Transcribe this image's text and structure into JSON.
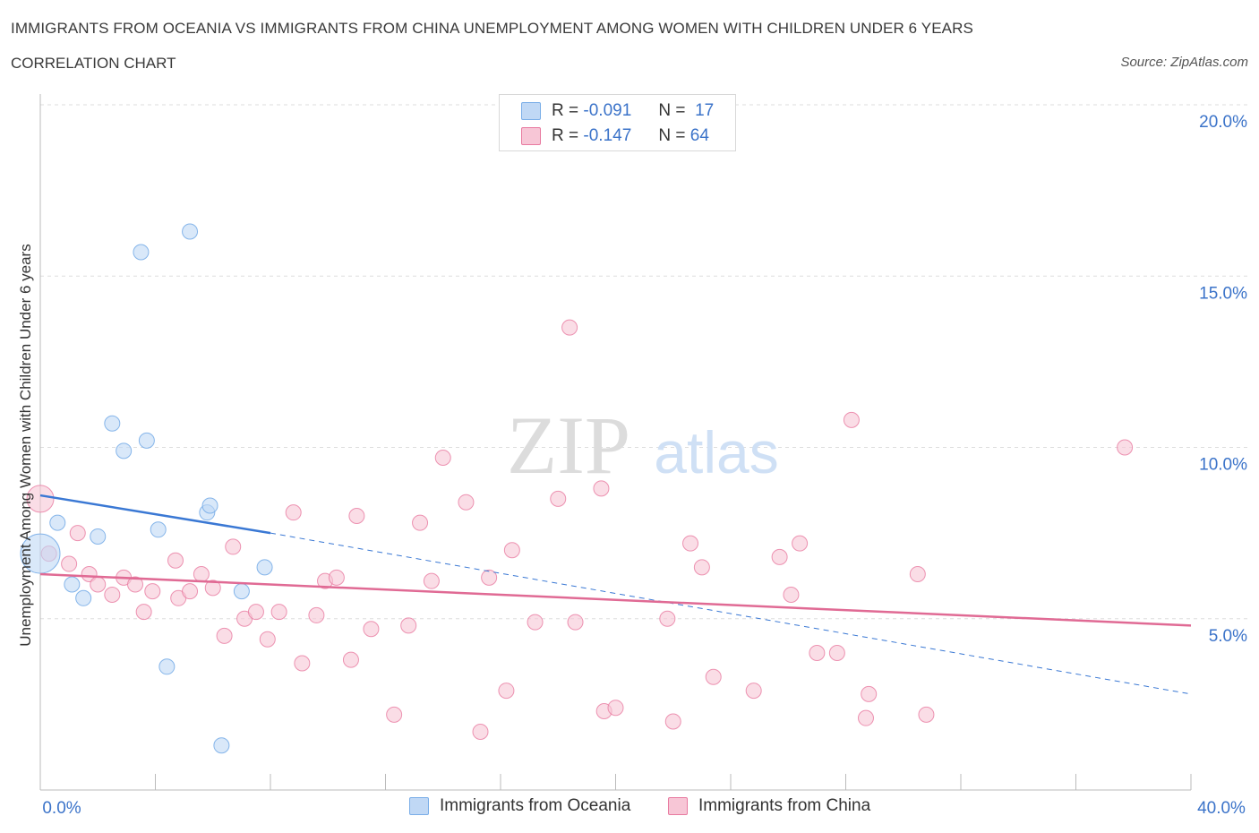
{
  "header": {
    "title": "IMMIGRANTS FROM OCEANIA VS IMMIGRANTS FROM CHINA UNEMPLOYMENT AMONG WOMEN WITH CHILDREN UNDER 6 YEARS",
    "subtitle": "CORRELATION CHART",
    "source": "Source: ZipAtlas.com"
  },
  "watermark": {
    "zip": "ZIP",
    "atlas": "atlas"
  },
  "legend": {
    "rows": [
      {
        "r_label": "R =",
        "r_value": "-0.091",
        "n_label": "N =",
        "n_value": "17"
      },
      {
        "r_label": "R =",
        "r_value": "-0.147",
        "n_label": "N =",
        "n_value": "64"
      }
    ]
  },
  "chart_data": {
    "type": "scatter",
    "title": "IMMIGRANTS FROM OCEANIA VS IMMIGRANTS FROM CHINA UNEMPLOYMENT AMONG WOMEN WITH CHILDREN UNDER 6 YEARS",
    "xlabel": "",
    "ylabel": "Unemployment Among Women with Children Under 6 years",
    "xlim": [
      0,
      40
    ],
    "ylim": [
      0,
      20
    ],
    "x_tick_labels": [
      "0.0%",
      "40.0%"
    ],
    "y_ticks": [
      5,
      10,
      15,
      20
    ],
    "y_tick_labels": [
      "5.0%",
      "10.0%",
      "15.0%",
      "20.0%"
    ],
    "grid": true,
    "series": [
      {
        "name": "Immigrants from Oceania",
        "color": "#7aaee8",
        "fill": "#c0d8f5",
        "points": [
          [
            0.0,
            6.9
          ],
          [
            0.6,
            7.8
          ],
          [
            1.1,
            6.0
          ],
          [
            1.5,
            5.6
          ],
          [
            2.0,
            7.4
          ],
          [
            2.5,
            10.7
          ],
          [
            2.9,
            9.9
          ],
          [
            3.5,
            15.7
          ],
          [
            3.7,
            10.2
          ],
          [
            4.1,
            7.6
          ],
          [
            4.4,
            3.6
          ],
          [
            5.2,
            16.3
          ],
          [
            5.8,
            8.1
          ],
          [
            5.9,
            8.3
          ],
          [
            6.3,
            1.3
          ],
          [
            7.0,
            5.8
          ],
          [
            7.8,
            6.5
          ]
        ],
        "trend": {
          "x0": 0,
          "y0": 8.6,
          "x1": 8.0,
          "y1": 7.5,
          "dash_to_x": 40,
          "dash_to_y": 2.8
        }
      },
      {
        "name": "Immigrants from China",
        "color": "#e87aa0",
        "fill": "#f7c6d6",
        "points": [
          [
            0.0,
            8.5
          ],
          [
            0.3,
            6.9
          ],
          [
            1.0,
            6.6
          ],
          [
            1.3,
            7.5
          ],
          [
            1.7,
            6.3
          ],
          [
            2.0,
            6.0
          ],
          [
            2.5,
            5.7
          ],
          [
            2.9,
            6.2
          ],
          [
            3.3,
            6.0
          ],
          [
            3.6,
            5.2
          ],
          [
            3.9,
            5.8
          ],
          [
            4.7,
            6.7
          ],
          [
            4.8,
            5.6
          ],
          [
            5.2,
            5.8
          ],
          [
            5.6,
            6.3
          ],
          [
            6.0,
            5.9
          ],
          [
            6.4,
            4.5
          ],
          [
            6.7,
            7.1
          ],
          [
            7.1,
            5.0
          ],
          [
            7.5,
            5.2
          ],
          [
            7.9,
            4.4
          ],
          [
            8.3,
            5.2
          ],
          [
            8.8,
            8.1
          ],
          [
            9.1,
            3.7
          ],
          [
            9.6,
            5.1
          ],
          [
            9.9,
            6.1
          ],
          [
            10.3,
            6.2
          ],
          [
            10.8,
            3.8
          ],
          [
            11.0,
            8.0
          ],
          [
            11.5,
            4.7
          ],
          [
            12.3,
            2.2
          ],
          [
            12.8,
            4.8
          ],
          [
            13.2,
            7.8
          ],
          [
            13.6,
            6.1
          ],
          [
            14.0,
            9.7
          ],
          [
            14.8,
            8.4
          ],
          [
            15.3,
            1.7
          ],
          [
            15.6,
            6.2
          ],
          [
            16.2,
            2.9
          ],
          [
            16.4,
            7.0
          ],
          [
            17.2,
            4.9
          ],
          [
            18.0,
            8.5
          ],
          [
            18.4,
            13.5
          ],
          [
            18.6,
            4.9
          ],
          [
            19.5,
            8.8
          ],
          [
            19.6,
            2.3
          ],
          [
            20.0,
            2.4
          ],
          [
            21.8,
            5.0
          ],
          [
            22.0,
            2.0
          ],
          [
            22.6,
            7.2
          ],
          [
            23.0,
            6.5
          ],
          [
            23.4,
            3.3
          ],
          [
            24.8,
            2.9
          ],
          [
            25.7,
            6.8
          ],
          [
            26.1,
            5.7
          ],
          [
            26.4,
            7.2
          ],
          [
            27.0,
            4.0
          ],
          [
            27.7,
            4.0
          ],
          [
            28.2,
            10.8
          ],
          [
            28.7,
            2.1
          ],
          [
            28.8,
            2.8
          ],
          [
            30.5,
            6.3
          ],
          [
            30.8,
            2.2
          ],
          [
            37.7,
            10.0
          ]
        ],
        "trend": {
          "x0": 0,
          "y0": 6.3,
          "x1": 40,
          "y1": 4.8
        }
      }
    ]
  },
  "colors": {
    "oceania": "#3a78d4",
    "china": "#e06a94",
    "axis_label_blue": "#3b73c9",
    "grid": "#e0e0e0"
  }
}
